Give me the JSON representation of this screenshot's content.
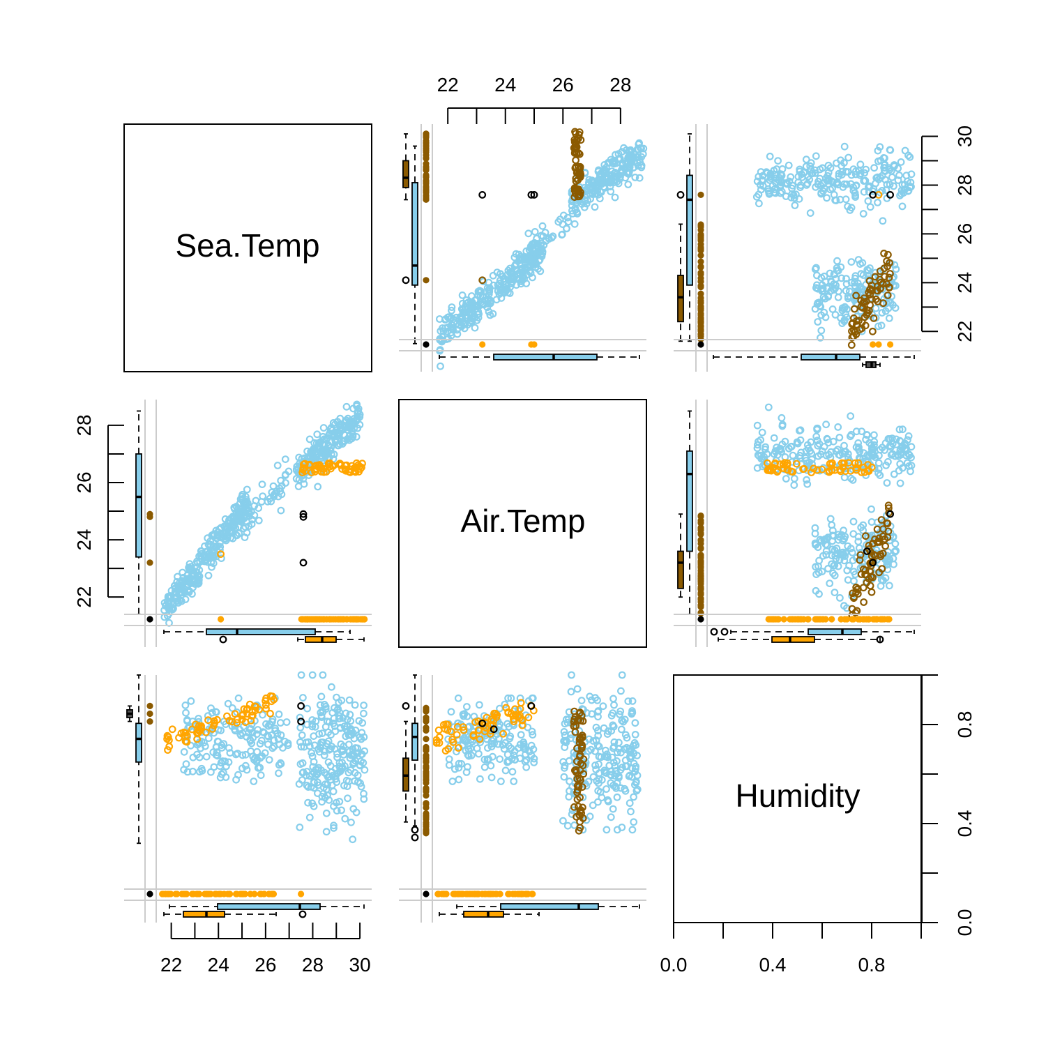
{
  "chart_data": {
    "type": "scatter",
    "title": "",
    "variables": [
      "Sea.Temp",
      "Air.Temp",
      "Humidity"
    ],
    "legend": "none",
    "grid": false,
    "colors": {
      "observed": "#87ceeb",
      "imputed_a": "#ffa500",
      "imputed_b": "#8b5a00",
      "both_missing": "#000000",
      "missing_reference_line": "#cccccc"
    },
    "axes": {
      "Sea.Temp": {
        "range": [
          20.0,
          30.5
        ],
        "ticks": [
          "22",
          "24",
          "26",
          "28",
          "30"
        ],
        "tick_values": [
          22,
          24,
          26,
          28,
          30
        ]
      },
      "Air.Temp": {
        "range": [
          20.3,
          28.9
        ],
        "ticks": [
          "22",
          "24",
          "26",
          "28"
        ],
        "tick_values": [
          22,
          24,
          26,
          28
        ]
      },
      "Humidity": {
        "range": [
          -0.28,
          1.0
        ],
        "ticks": [
          "0.0",
          "0.4",
          "0.8"
        ],
        "tick_values": [
          0.0,
          0.4,
          0.8
        ]
      }
    },
    "axis_label_positions": {
      "top": [
        "Air.Temp"
      ],
      "right_upper": [
        "Sea.Temp"
      ],
      "left_middle": [
        "Air.Temp"
      ],
      "right_lower": [
        "Humidity"
      ],
      "bottom_left": [
        "Sea.Temp"
      ],
      "bottom_right": [
        "Humidity"
      ]
    },
    "series_summary": {
      "Sea.Temp_vs_Air.Temp": {
        "observed": "lower cluster from (21.6, 21.6) to (26.6, 25.0); upper cluster from (26.7, 26.0) to (30.0, 28.5)",
        "imputed_orange": "horizontal band at Air.Temp 26.3 to 26.7 for Sea.Temp 27.5 to 30.2",
        "imputed_brown": "vertical band at Air.Temp 26.2 to 26.8 for Sea.Temp 27.4 to 30.2",
        "both_missing_black": [
          [
            23.2,
            27.6
          ],
          [
            24.9,
            27.6
          ],
          [
            25.0,
            27.6
          ]
        ]
      },
      "Humidity_vs_Sea.Temp": {
        "observed": "cluster Sea.Temp 22.5 to 27.0 at Humidity 0.45 to 0.88; cluster Sea.Temp 27.4 to 30.2 at Humidity 0.15 to 1.0",
        "imputed_orange": "band Humidity 0.62 to 0.85 for Sea.Temp 21.6 to 26.4",
        "both_missing_black": [
          [
            27.5,
            0.84
          ],
          [
            27.5,
            0.76
          ]
        ]
      },
      "Humidity_vs_Air.Temp": {
        "observed": "cluster Humidity 0.45 to 1.0 at Air.Temp 22.0 to 25.0; cluster Humidity 0.2 to 1.0 at Air.Temp 26.0 to 28.5",
        "imputed_orange": "band Humidity 0.6 to 0.85 for Air.Temp 21.6 to 25.0",
        "imputed_brown": "vertical band Humidity 0.18 to 0.82 at Air.Temp 26.3 to 26.8",
        "both_missing_black": [
          [
            24.9,
            0.84
          ],
          [
            23.2,
            0.75
          ],
          [
            23.6,
            0.72
          ]
        ]
      }
    }
  }
}
